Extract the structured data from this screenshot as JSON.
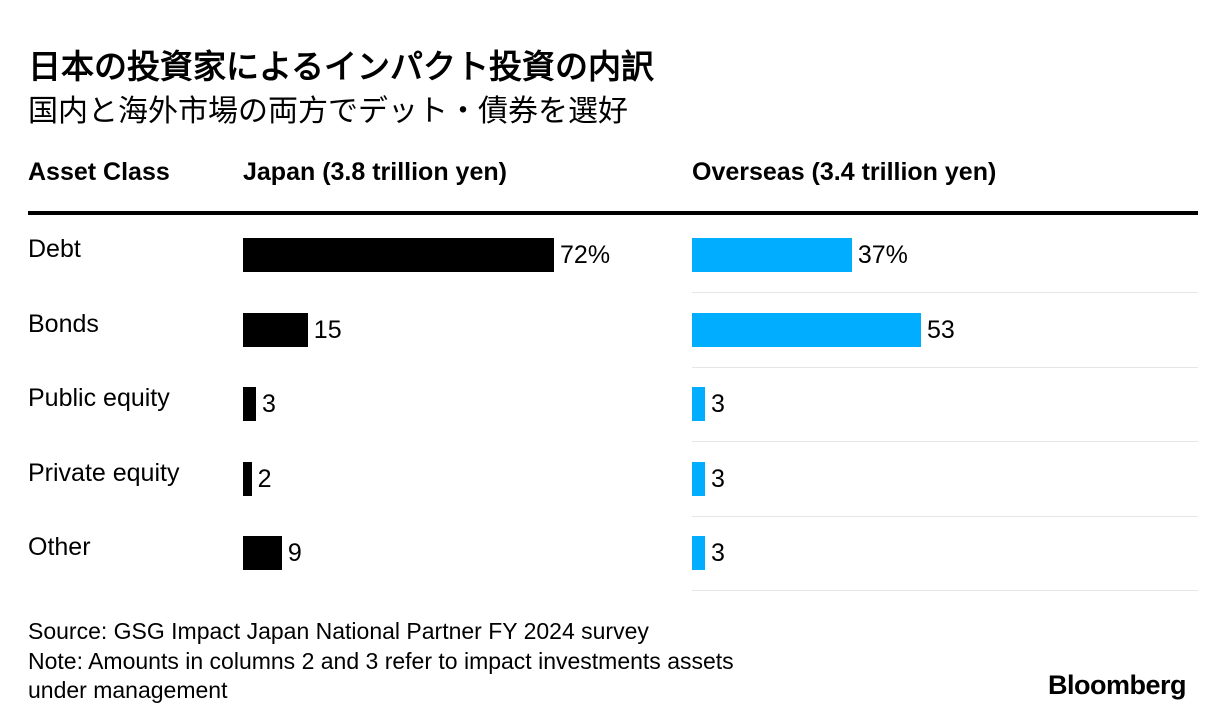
{
  "title": "日本の投資家によるインパクト投資の内訳",
  "subtitle": "国内と海外市場の両方でデット・債券を選好",
  "headers": {
    "asset_class": "Asset Class",
    "japan": "Japan (3.8 trillion yen)",
    "overseas": "Overseas (3.4 trillion yen)"
  },
  "colors": {
    "japan": "#000000",
    "overseas": "#00adff",
    "separator": "#e6e6e6"
  },
  "chart_data": {
    "type": "bar",
    "orientation": "horizontal",
    "categories": [
      "Debt",
      "Bonds",
      "Public equity",
      "Private equity",
      "Other"
    ],
    "series": [
      {
        "name": "Japan (3.8 trillion yen)",
        "values": [
          72,
          15,
          3,
          2,
          9
        ],
        "labels": [
          "72%",
          "15",
          "3",
          "2",
          "9"
        ]
      },
      {
        "name": "Overseas (3.4 trillion yen)",
        "values": [
          37,
          53,
          3,
          3,
          3
        ],
        "labels": [
          "37%",
          "53",
          "3",
          "3",
          "3"
        ]
      }
    ],
    "unit": "%",
    "xlim": [
      0,
      100
    ],
    "title": "日本の投資家によるインパクト投資の内訳",
    "legend": "column headers"
  },
  "source": {
    "line1": "Source: GSG Impact Japan National Partner FY 2024 survey",
    "line2": "Note: Amounts in columns 2 and 3 refer to impact investments assets",
    "line3": "under management"
  },
  "logo": "Bloomberg"
}
